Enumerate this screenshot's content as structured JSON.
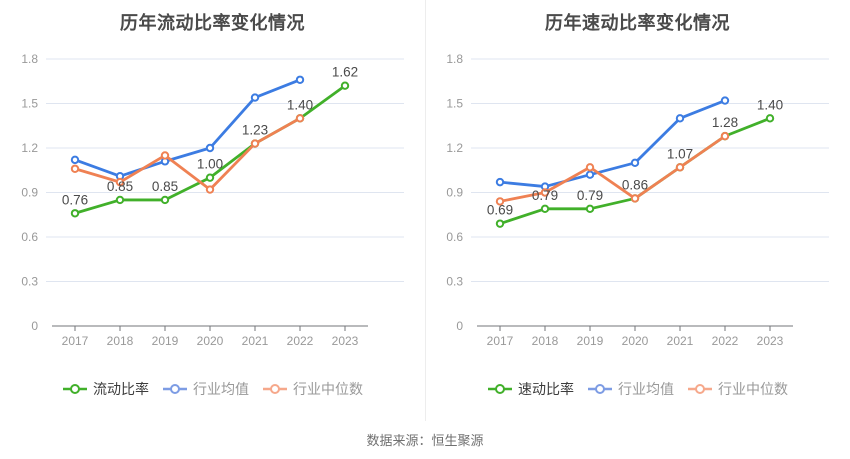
{
  "page": {
    "background": "#ffffff"
  },
  "footer": {
    "source_label": "数据来源：恒生聚源"
  },
  "style": {
    "grid_color": "#dfe5f0",
    "axis_color": "#73767a",
    "tick_label_color": "#999999",
    "data_label_color": "#4a4a4a",
    "title_color": "#4a4a4a"
  },
  "chart_data": [
    {
      "type": "line",
      "title": "历年流动比率变化情况",
      "xlabel": "",
      "ylabel": "",
      "categories": [
        "2017",
        "2018",
        "2019",
        "2020",
        "2021",
        "2022",
        "2023"
      ],
      "ylim": [
        0,
        1.8
      ],
      "yticks": [
        "0",
        "0.3",
        "0.6",
        "0.9",
        "1.2",
        "1.5",
        "1.8"
      ],
      "grid": true,
      "legend_position": "bottom",
      "series": [
        {
          "name": "流动比率",
          "values": [
            0.76,
            0.85,
            0.85,
            1.0,
            1.23,
            1.4,
            1.62
          ],
          "labels": [
            "0.76",
            "0.85",
            "0.85",
            "1.00",
            "1.23",
            "1.40",
            "1.62"
          ],
          "line_color": "#41b02a",
          "legend_icon_color": "#41b02a",
          "legend_text_color": "#3c3c3c"
        },
        {
          "name": "行业均值",
          "values": [
            1.12,
            1.01,
            1.11,
            1.2,
            1.54,
            1.66
          ],
          "line_color": "#3c7ce2",
          "legend_icon_color": "#7d9ce4",
          "legend_text_color": "#999999"
        },
        {
          "name": "行业中位数",
          "values": [
            1.06,
            0.97,
            1.15,
            0.92,
            1.23,
            1.4
          ],
          "line_color": "#ef8153",
          "legend_icon_color": "#f6a88b",
          "legend_text_color": "#999999"
        }
      ]
    },
    {
      "type": "line",
      "title": "历年速动比率变化情况",
      "xlabel": "",
      "ylabel": "",
      "categories": [
        "2017",
        "2018",
        "2019",
        "2020",
        "2021",
        "2022",
        "2023"
      ],
      "ylim": [
        0,
        1.8
      ],
      "yticks": [
        "0",
        "0.3",
        "0.6",
        "0.9",
        "1.2",
        "1.5",
        "1.8"
      ],
      "grid": true,
      "legend_position": "bottom",
      "series": [
        {
          "name": "速动比率",
          "values": [
            0.69,
            0.79,
            0.79,
            0.86,
            1.07,
            1.28,
            1.4
          ],
          "labels": [
            "0.69",
            "0.79",
            "0.79",
            "0.86",
            "1.07",
            "1.28",
            "1.40"
          ],
          "line_color": "#41b02a",
          "legend_icon_color": "#41b02a",
          "legend_text_color": "#3c3c3c"
        },
        {
          "name": "行业均值",
          "values": [
            0.97,
            0.94,
            1.02,
            1.1,
            1.4,
            1.52
          ],
          "line_color": "#3c7ce2",
          "legend_icon_color": "#7d9ce4",
          "legend_text_color": "#999999"
        },
        {
          "name": "行业中位数",
          "values": [
            0.84,
            0.9,
            1.07,
            0.86,
            1.07,
            1.28
          ],
          "line_color": "#ef8153",
          "legend_icon_color": "#f6a88b",
          "legend_text_color": "#999999"
        }
      ]
    }
  ]
}
